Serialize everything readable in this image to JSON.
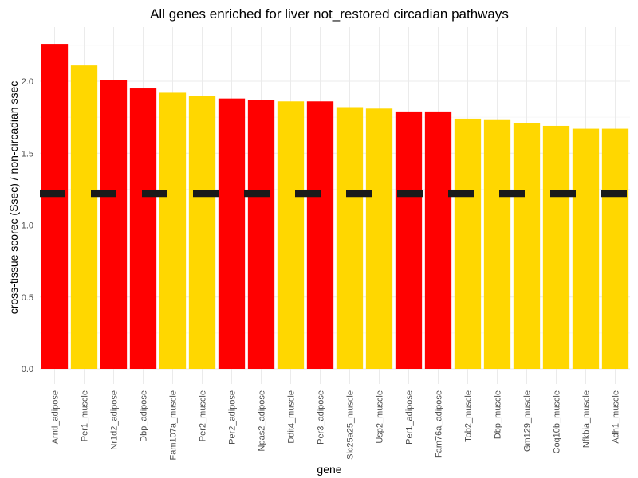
{
  "chart_data": {
    "type": "bar",
    "title": "All genes enriched for liver not_restored circadian pathways",
    "xlabel": "gene",
    "ylabel": "cross-tissue scorec (Ssec) / non-circadian ssec",
    "ylim": [
      0,
      2.3
    ],
    "yticks": [
      0.0,
      0.5,
      1.0,
      1.5,
      2.0
    ],
    "ytick_labels": [
      "0.0",
      "0.5",
      "1.0",
      "1.5",
      "2.0"
    ],
    "grid": true,
    "legend": "none",
    "colors": {
      "red": "#FF0000",
      "yellow": "#FFD700",
      "reference": "#1a1a1a"
    },
    "categories": [
      "Arntl_adipose",
      "Per1_muscle",
      "Nr1d2_adipose",
      "Dbp_adipose",
      "Fam107a_muscle",
      "Per2_muscle",
      "Per2_adipose",
      "Npas2_adipose",
      "Ddit4_muscle",
      "Per3_adipose",
      "Slc25a25_muscle",
      "Usp2_muscle",
      "Per1_adipose",
      "Fam76a_adipose",
      "Tob2_muscle",
      "Dbp_muscle",
      "Gm129_muscle",
      "Coq10b_muscle",
      "Nfkbia_muscle",
      "Adh1_muscle"
    ],
    "values": [
      2.26,
      2.11,
      2.01,
      1.95,
      1.92,
      1.9,
      1.88,
      1.87,
      1.86,
      1.86,
      1.82,
      1.81,
      1.79,
      1.79,
      1.74,
      1.73,
      1.71,
      1.69,
      1.67,
      1.67
    ],
    "bar_colors": [
      "red",
      "yellow",
      "red",
      "red",
      "yellow",
      "yellow",
      "red",
      "red",
      "yellow",
      "red",
      "yellow",
      "yellow",
      "red",
      "red",
      "yellow",
      "yellow",
      "yellow",
      "yellow",
      "yellow",
      "yellow"
    ],
    "reference_line": {
      "y": 1.22,
      "style": "dashed"
    }
  }
}
